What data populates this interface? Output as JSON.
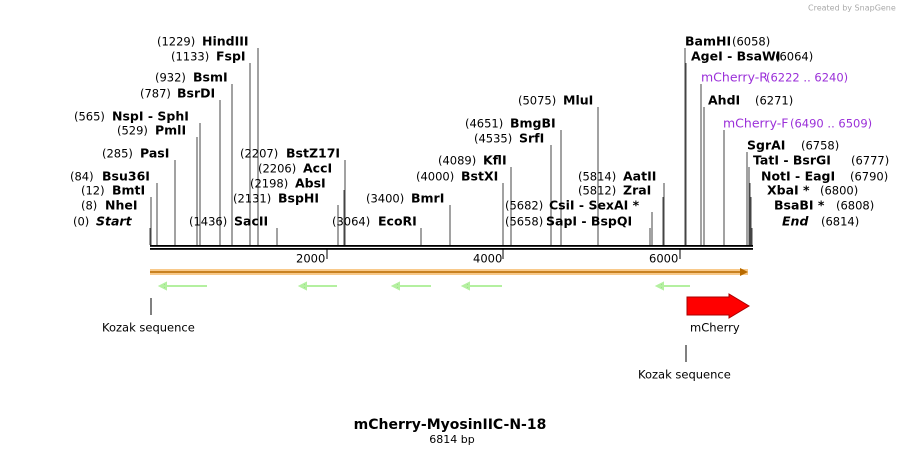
{
  "credit": "Created by SnapGene",
  "sites": [
    {
      "pos": "(1229)",
      "name": "HindIII"
    },
    {
      "pos": "(1133)",
      "name": "FspI"
    },
    {
      "pos": "(932)",
      "name": "BsmI"
    },
    {
      "pos": "(787)",
      "name": "BsrDI"
    },
    {
      "pos": "(565)",
      "name": "NspI - SphI"
    },
    {
      "pos": "(529)",
      "name": "PmlI"
    },
    {
      "pos": "(285)",
      "name": "PasI"
    },
    {
      "pos": "(84)",
      "name": "Bsu36I"
    },
    {
      "pos": "(12)",
      "name": "BmtI"
    },
    {
      "pos": "(8)",
      "name": "NheI"
    },
    {
      "pos": "(0)",
      "name": "Start"
    },
    {
      "pos": "(1436)",
      "name": "SacII"
    },
    {
      "pos": "(2207)",
      "name": "BstZ17I"
    },
    {
      "pos": "(2206)",
      "name": "AccI"
    },
    {
      "pos": "(2198)",
      "name": "AbsI"
    },
    {
      "pos": "(2131)",
      "name": "BspHI"
    },
    {
      "pos": "(3064)",
      "name": "EcoRI"
    },
    {
      "pos": "(3400)",
      "name": "BmrI"
    },
    {
      "pos": "(4000)",
      "name": "BstXI"
    },
    {
      "pos": "(4089)",
      "name": "KflI"
    },
    {
      "pos": "(4535)",
      "name": "SrfI"
    },
    {
      "pos": "(4651)",
      "name": "BmgBI"
    },
    {
      "pos": "(5075)",
      "name": "MluI"
    },
    {
      "pos": "(5814)",
      "name": "AatII"
    },
    {
      "pos": "(5812)",
      "name": "ZraI"
    },
    {
      "pos": "(5682)",
      "name": "CsiI - SexAI *"
    },
    {
      "pos": "(5658)",
      "name": "SapI - BspQI"
    },
    {
      "pos": "(6058)",
      "name": "BamHI"
    },
    {
      "pos": "(6064)",
      "name": "AgeI - BsaWI"
    },
    {
      "pos": "(6222 .. 6240)",
      "name": "mCherry-R"
    },
    {
      "pos": "(6271)",
      "name": "AhdI"
    },
    {
      "pos": "(6490 .. 6509)",
      "name": "mCherry-F"
    },
    {
      "pos": "(6758)",
      "name": "SgrAI"
    },
    {
      "pos": "(6777)",
      "name": "TatI - BsrGI"
    },
    {
      "pos": "(6790)",
      "name": "NotI - EagI"
    },
    {
      "pos": "(6800)",
      "name": "XbaI *"
    },
    {
      "pos": "(6808)",
      "name": "BsaBI *"
    },
    {
      "pos": "(6814)",
      "name": "End"
    }
  ],
  "ruler": [
    "2000",
    "4000",
    "6000"
  ],
  "features": [
    "Kozak sequence",
    "mCherry",
    "Kozak sequence"
  ],
  "title": "mCherry-MyosinIIC-N-18",
  "length": "6814 bp"
}
